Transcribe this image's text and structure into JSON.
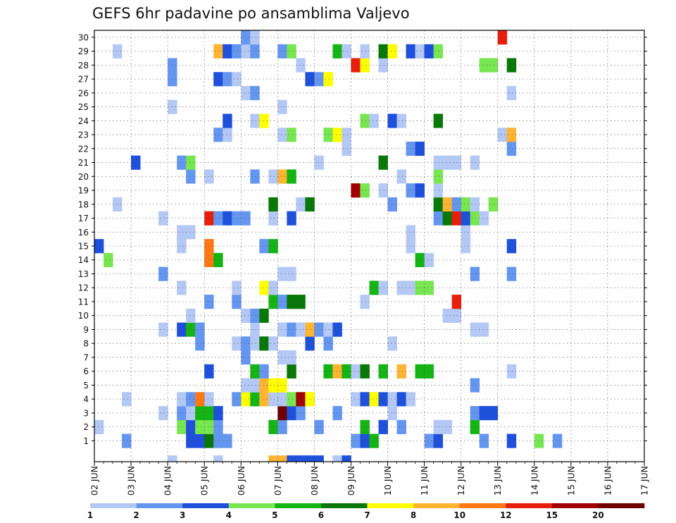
{
  "chart_data": {
    "type": "heatmap",
    "title": "GEFS 6hr padavine po ansamblima Valjevo",
    "x_dates": [
      "02 JUN",
      "03 JUN",
      "04 JUN",
      "05 JUN",
      "06 JUN",
      "07 JUN",
      "08 JUN",
      "09 JUN",
      "10 JUN",
      "11 JUN",
      "12 JUN",
      "13 JUN",
      "14 JUN",
      "15 JUN",
      "16 JUN",
      "17 JUN"
    ],
    "steps_per_day": 4,
    "y_members": [
      1,
      2,
      3,
      4,
      5,
      6,
      7,
      8,
      9,
      10,
      11,
      12,
      13,
      14,
      15,
      16,
      17,
      18,
      19,
      20,
      21,
      22,
      23,
      24,
      25,
      26,
      27,
      28,
      29,
      30
    ],
    "grid": true,
    "legend": {
      "placement": "bottom",
      "colors": [
        "#b4c8f5",
        "#6496f0",
        "#1e50dc",
        "#78e650",
        "#14b414",
        "#087808",
        "#ffff00",
        "#ffb432",
        "#ff7814",
        "#e61e0a",
        "#a00000",
        "#6e0000"
      ],
      "labels": [
        "1",
        "2",
        "3",
        "4",
        "5",
        "6",
        "7",
        "8",
        "10",
        "12",
        "15",
        "20"
      ]
    },
    "cells_note": "each cell: [member, time_step_from_start, color_class_index]",
    "cells": [
      [
        1,
        3,
        1
      ],
      [
        1,
        10,
        2
      ],
      [
        1,
        11,
        2
      ],
      [
        1,
        12,
        5
      ],
      [
        1,
        13,
        1
      ],
      [
        1,
        14,
        1
      ],
      [
        1,
        28,
        1
      ],
      [
        1,
        29,
        2
      ],
      [
        1,
        30,
        4
      ],
      [
        1,
        36,
        1
      ],
      [
        1,
        37,
        2
      ],
      [
        1,
        42,
        1
      ],
      [
        1,
        45,
        2
      ],
      [
        1,
        48,
        3
      ],
      [
        1,
        50,
        1
      ],
      [
        2,
        0,
        0
      ],
      [
        2,
        9,
        3
      ],
      [
        2,
        10,
        2
      ],
      [
        2,
        11,
        3
      ],
      [
        2,
        12,
        3
      ],
      [
        2,
        13,
        1
      ],
      [
        2,
        19,
        4
      ],
      [
        2,
        20,
        1
      ],
      [
        2,
        24,
        1
      ],
      [
        2,
        29,
        4
      ],
      [
        2,
        31,
        2
      ],
      [
        2,
        33,
        1
      ],
      [
        2,
        37,
        0
      ],
      [
        2,
        38,
        0
      ],
      [
        2,
        41,
        4
      ],
      [
        3,
        7,
        0
      ],
      [
        3,
        9,
        1
      ],
      [
        3,
        10,
        0
      ],
      [
        3,
        11,
        4
      ],
      [
        3,
        12,
        4
      ],
      [
        3,
        13,
        2
      ],
      [
        3,
        20,
        11
      ],
      [
        3,
        21,
        2
      ],
      [
        3,
        22,
        1
      ],
      [
        3,
        26,
        1
      ],
      [
        3,
        32,
        0
      ],
      [
        3,
        41,
        1
      ],
      [
        3,
        42,
        2
      ],
      [
        3,
        43,
        2
      ],
      [
        4,
        3,
        0
      ],
      [
        4,
        9,
        0
      ],
      [
        4,
        10,
        1
      ],
      [
        4,
        11,
        8
      ],
      [
        4,
        12,
        0
      ],
      [
        4,
        15,
        1
      ],
      [
        4,
        16,
        6
      ],
      [
        4,
        17,
        4
      ],
      [
        4,
        18,
        7
      ],
      [
        4,
        19,
        0
      ],
      [
        4,
        20,
        0
      ],
      [
        4,
        21,
        3
      ],
      [
        4,
        22,
        10
      ],
      [
        4,
        23,
        6
      ],
      [
        4,
        28,
        0
      ],
      [
        4,
        29,
        2
      ],
      [
        4,
        30,
        6
      ],
      [
        4,
        31,
        2
      ],
      [
        4,
        32,
        0
      ],
      [
        4,
        33,
        2
      ],
      [
        4,
        34,
        0
      ],
      [
        5,
        16,
        0
      ],
      [
        5,
        17,
        0
      ],
      [
        5,
        18,
        7
      ],
      [
        5,
        19,
        6
      ],
      [
        5,
        20,
        6
      ],
      [
        5,
        41,
        1
      ],
      [
        6,
        12,
        2
      ],
      [
        6,
        17,
        4
      ],
      [
        6,
        18,
        1
      ],
      [
        6,
        21,
        5
      ],
      [
        6,
        25,
        4
      ],
      [
        6,
        26,
        7
      ],
      [
        6,
        27,
        4
      ],
      [
        6,
        28,
        0
      ],
      [
        6,
        29,
        5
      ],
      [
        6,
        31,
        4
      ],
      [
        6,
        33,
        7
      ],
      [
        6,
        35,
        4
      ],
      [
        6,
        36,
        4
      ],
      [
        6,
        45,
        0
      ],
      [
        7,
        16,
        1
      ],
      [
        7,
        20,
        0
      ],
      [
        7,
        21,
        0
      ],
      [
        8,
        11,
        1
      ],
      [
        8,
        15,
        0
      ],
      [
        8,
        16,
        1
      ],
      [
        8,
        17,
        0
      ],
      [
        8,
        18,
        5
      ],
      [
        8,
        19,
        0
      ],
      [
        8,
        23,
        2
      ],
      [
        8,
        25,
        1
      ],
      [
        8,
        32,
        0
      ],
      [
        9,
        7,
        0
      ],
      [
        9,
        9,
        2
      ],
      [
        9,
        10,
        4
      ],
      [
        9,
        11,
        1
      ],
      [
        9,
        17,
        0
      ],
      [
        9,
        20,
        0
      ],
      [
        9,
        21,
        1
      ],
      [
        9,
        22,
        0
      ],
      [
        9,
        23,
        7
      ],
      [
        9,
        24,
        1
      ],
      [
        9,
        25,
        0
      ],
      [
        9,
        26,
        2
      ],
      [
        9,
        41,
        0
      ],
      [
        9,
        42,
        0
      ],
      [
        10,
        10,
        0
      ],
      [
        10,
        16,
        0
      ],
      [
        10,
        17,
        1
      ],
      [
        10,
        18,
        5
      ],
      [
        10,
        38,
        0
      ],
      [
        10,
        39,
        0
      ],
      [
        11,
        12,
        1
      ],
      [
        11,
        15,
        1
      ],
      [
        11,
        19,
        4
      ],
      [
        11,
        20,
        1
      ],
      [
        11,
        21,
        5
      ],
      [
        11,
        22,
        5
      ],
      [
        11,
        29,
        0
      ],
      [
        11,
        39,
        9
      ],
      [
        12,
        9,
        0
      ],
      [
        12,
        15,
        0
      ],
      [
        12,
        18,
        6
      ],
      [
        12,
        19,
        0
      ],
      [
        12,
        30,
        4
      ],
      [
        12,
        31,
        0
      ],
      [
        12,
        33,
        0
      ],
      [
        12,
        34,
        0
      ],
      [
        12,
        35,
        3
      ],
      [
        12,
        36,
        3
      ],
      [
        13,
        7,
        1
      ],
      [
        13,
        20,
        0
      ],
      [
        13,
        21,
        0
      ],
      [
        13,
        41,
        1
      ],
      [
        13,
        45,
        1
      ],
      [
        14,
        1,
        3
      ],
      [
        14,
        12,
        8
      ],
      [
        14,
        13,
        4
      ],
      [
        14,
        35,
        4
      ],
      [
        14,
        36,
        0
      ],
      [
        15,
        0,
        2
      ],
      [
        15,
        9,
        0
      ],
      [
        15,
        12,
        8
      ],
      [
        15,
        18,
        1
      ],
      [
        15,
        19,
        4
      ],
      [
        15,
        34,
        0
      ],
      [
        15,
        40,
        0
      ],
      [
        15,
        45,
        2
      ],
      [
        16,
        9,
        0
      ],
      [
        16,
        10,
        0
      ],
      [
        16,
        34,
        0
      ],
      [
        16,
        40,
        0
      ],
      [
        17,
        7,
        0
      ],
      [
        17,
        12,
        9
      ],
      [
        17,
        13,
        1
      ],
      [
        17,
        14,
        2
      ],
      [
        17,
        15,
        1
      ],
      [
        17,
        16,
        1
      ],
      [
        17,
        19,
        0
      ],
      [
        17,
        21,
        2
      ],
      [
        17,
        37,
        1
      ],
      [
        17,
        38,
        5
      ],
      [
        17,
        39,
        9
      ],
      [
        17,
        40,
        2
      ],
      [
        17,
        41,
        3
      ],
      [
        17,
        42,
        0
      ],
      [
        18,
        2,
        0
      ],
      [
        18,
        19,
        5
      ],
      [
        18,
        22,
        0
      ],
      [
        18,
        23,
        5
      ],
      [
        18,
        32,
        1
      ],
      [
        18,
        37,
        5
      ],
      [
        18,
        38,
        7
      ],
      [
        18,
        39,
        1
      ],
      [
        18,
        40,
        3
      ],
      [
        18,
        41,
        0
      ],
      [
        18,
        43,
        3
      ],
      [
        19,
        28,
        10
      ],
      [
        19,
        29,
        3
      ],
      [
        19,
        31,
        0
      ],
      [
        19,
        34,
        1
      ],
      [
        19,
        35,
        2
      ],
      [
        19,
        37,
        0
      ],
      [
        20,
        10,
        1
      ],
      [
        20,
        12,
        0
      ],
      [
        20,
        17,
        1
      ],
      [
        20,
        19,
        0
      ],
      [
        20,
        20,
        7
      ],
      [
        20,
        21,
        4
      ],
      [
        20,
        33,
        0
      ],
      [
        20,
        37,
        3
      ],
      [
        21,
        4,
        2
      ],
      [
        21,
        9,
        1
      ],
      [
        21,
        10,
        3
      ],
      [
        21,
        24,
        0
      ],
      [
        21,
        31,
        5
      ],
      [
        21,
        37,
        0
      ],
      [
        21,
        38,
        0
      ],
      [
        21,
        39,
        0
      ],
      [
        21,
        41,
        0
      ],
      [
        22,
        27,
        0
      ],
      [
        22,
        34,
        1
      ],
      [
        22,
        35,
        2
      ],
      [
        22,
        45,
        1
      ],
      [
        23,
        13,
        1
      ],
      [
        23,
        14,
        0
      ],
      [
        23,
        20,
        0
      ],
      [
        23,
        21,
        3
      ],
      [
        23,
        25,
        3
      ],
      [
        23,
        26,
        6
      ],
      [
        23,
        27,
        0
      ],
      [
        23,
        44,
        0
      ],
      [
        23,
        45,
        7
      ],
      [
        24,
        14,
        2
      ],
      [
        24,
        17,
        0
      ],
      [
        24,
        18,
        6
      ],
      [
        24,
        29,
        3
      ],
      [
        24,
        30,
        0
      ],
      [
        24,
        32,
        2
      ],
      [
        24,
        33,
        0
      ],
      [
        24,
        37,
        5
      ],
      [
        25,
        8,
        0
      ],
      [
        25,
        20,
        0
      ],
      [
        26,
        16,
        0
      ],
      [
        26,
        17,
        1
      ],
      [
        26,
        45,
        0
      ],
      [
        27,
        8,
        1
      ],
      [
        27,
        13,
        2
      ],
      [
        27,
        14,
        1
      ],
      [
        27,
        15,
        0
      ],
      [
        27,
        23,
        2
      ],
      [
        27,
        24,
        1
      ],
      [
        27,
        25,
        6
      ],
      [
        28,
        8,
        1
      ],
      [
        28,
        22,
        0
      ],
      [
        28,
        28,
        9
      ],
      [
        28,
        29,
        6
      ],
      [
        28,
        31,
        0
      ],
      [
        28,
        42,
        3
      ],
      [
        28,
        43,
        3
      ],
      [
        28,
        45,
        5
      ],
      [
        29,
        2,
        0
      ],
      [
        29,
        13,
        7
      ],
      [
        29,
        14,
        2
      ],
      [
        29,
        15,
        1
      ],
      [
        29,
        16,
        0
      ],
      [
        29,
        17,
        1
      ],
      [
        29,
        20,
        1
      ],
      [
        29,
        21,
        3
      ],
      [
        29,
        26,
        4
      ],
      [
        29,
        27,
        0
      ],
      [
        29,
        29,
        0
      ],
      [
        29,
        31,
        5
      ],
      [
        29,
        32,
        6
      ],
      [
        29,
        34,
        2
      ],
      [
        29,
        35,
        0
      ],
      [
        29,
        36,
        2
      ],
      [
        29,
        37,
        3
      ],
      [
        30,
        16,
        1
      ],
      [
        30,
        17,
        0
      ],
      [
        30,
        44,
        9
      ]
    ],
    "bottom_strip": [
      [
        8,
        0
      ],
      [
        13,
        0
      ],
      [
        19,
        7
      ],
      [
        20,
        7
      ],
      [
        21,
        2
      ],
      [
        22,
        2
      ],
      [
        23,
        2
      ],
      [
        24,
        2
      ],
      [
        26,
        0
      ],
      [
        27,
        2
      ]
    ]
  }
}
